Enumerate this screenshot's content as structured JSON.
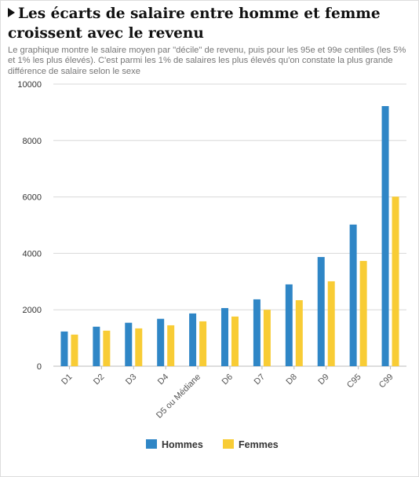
{
  "header": {
    "title": "Les écarts de salaire entre homme et femme croissent avec le revenu",
    "subtitle": "Le graphique montre le salaire moyen par \"décile\" de revenu, puis pour les 95e et 99e centiles (les 5% et 1% les plus élevés). C'est parmi les 1% de salaires les plus élevés qu'on constate la plus grande différence de salaire selon le sexe"
  },
  "colors": {
    "hommes": "#2f86c6",
    "femmes": "#f8cc35",
    "grid": "#d8d8d8",
    "axis": "#bbbbbb"
  },
  "chart_data": {
    "type": "bar",
    "categories": [
      "D1",
      "D2",
      "D3",
      "D4",
      "D5 ou Médiane",
      "D6",
      "D7",
      "D8",
      "D9",
      "C95",
      "C99"
    ],
    "series": [
      {
        "name": "Hommes",
        "values": [
          1230,
          1400,
          1540,
          1680,
          1870,
          2060,
          2370,
          2900,
          3870,
          5020,
          9220
        ]
      },
      {
        "name": "Femmes",
        "values": [
          1120,
          1260,
          1340,
          1450,
          1590,
          1760,
          2000,
          2340,
          3010,
          3730,
          6010
        ]
      }
    ],
    "ylim": [
      0,
      10000
    ],
    "yticks": [
      0,
      2000,
      4000,
      6000,
      8000,
      10000
    ],
    "grid": true,
    "legend_position": "bottom-center",
    "title": "Les écarts de salaire entre homme et femme croissent avec le revenu",
    "xlabel": "",
    "ylabel": ""
  }
}
